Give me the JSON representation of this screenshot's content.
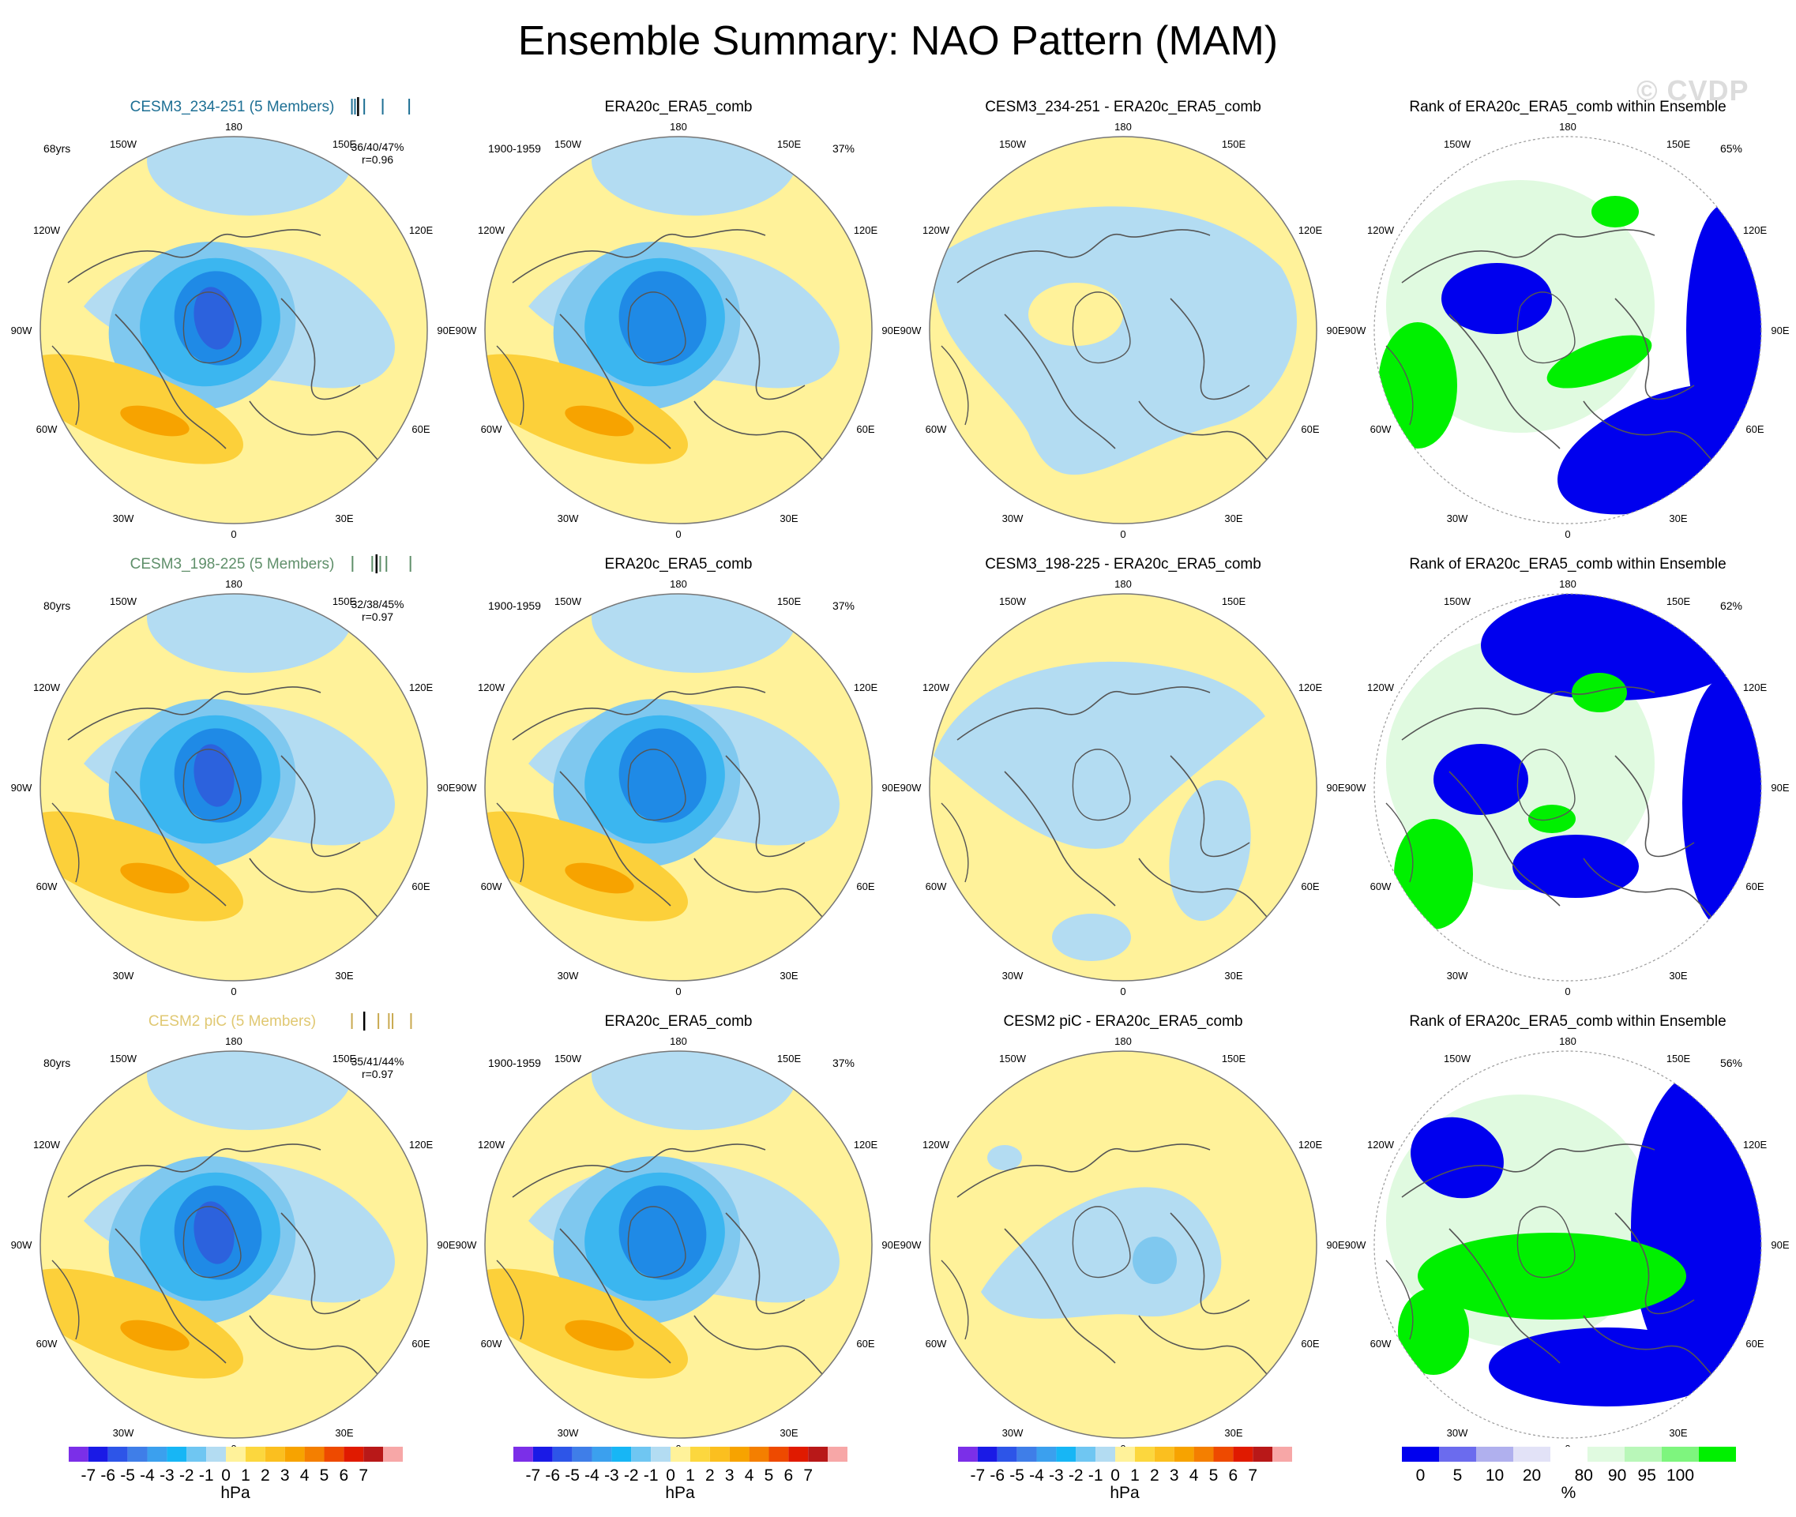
{
  "title": "Ensemble Summary: NAO Pattern (MAM)",
  "watermark": "© CVDP",
  "map_labels": {
    "top": "180",
    "bottom": "0",
    "left": "90W",
    "right": "90E",
    "ul1": "150W",
    "ur1": "150E",
    "ul2": "120W",
    "ur2": "120E",
    "ll1": "60W",
    "lr1": "60E",
    "ll2": "30W",
    "lr2": "30E"
  },
  "colors": {
    "pos1": "#fff29a",
    "pos2": "#fcd03a",
    "pos3": "#f7a300",
    "neg1": "#b3dcf2",
    "neg2": "#7fc8ef",
    "neg3": "#3bb6f0",
    "neg4": "#1f8ae6",
    "neg5": "#2c62dd",
    "rank_blue": "#0000ee",
    "rank_green": "#00f000",
    "rank_pale": "#e0fae0",
    "coast": "#555555"
  },
  "chart_data": [
    {
      "type": "heatmap",
      "projection": "north-polar-stereographic",
      "units": "hPa",
      "rows": [
        {
          "model": "CESM3_234-251 (5 Members)",
          "model_color": "#1d6f94",
          "years": "68yrs",
          "pct_stats": "36/40/47%",
          "r": "r=0.96",
          "ens_bar_color": "#1d6f94",
          "ens_ticks": [
            0.02,
            0.07,
            0.22,
            0.52,
            0.95
          ],
          "ens_obs_tick": 0.12,
          "obs_title": "ERA20c_ERA5_comb",
          "obs_years": "1900-1959",
          "obs_pct": "37%",
          "diff_title": "CESM3_234-251 - ERA20c_ERA5_comb",
          "rank_title": "Rank of ERA20c_ERA5_comb within Ensemble",
          "rank_pct": "65%"
        },
        {
          "model": "CESM3_198-225 (5 Members)",
          "model_color": "#5f8f6a",
          "years": "80yrs",
          "pct_stats": "32/38/45%",
          "r": "r=0.97",
          "ens_bar_color": "#5f8f6a",
          "ens_ticks": [
            0.03,
            0.35,
            0.48,
            0.58,
            0.97
          ],
          "ens_obs_tick": 0.42,
          "obs_title": "ERA20c_ERA5_comb",
          "obs_years": "1900-1959",
          "obs_pct": "37%",
          "diff_title": "CESM3_198-225 - ERA20c_ERA5_comb",
          "rank_title": "Rank of ERA20c_ERA5_comb within Ensemble",
          "rank_pct": "62%"
        },
        {
          "model": "CESM2 piC (5 Members)",
          "model_color": "#e0c872",
          "years": "80yrs",
          "pct_stats": "35/41/44%",
          "r": "r=0.97",
          "ens_bar_color": "#c9a94f",
          "ens_ticks": [
            0.02,
            0.45,
            0.62,
            0.68,
            0.98
          ],
          "ens_obs_tick": 0.22,
          "obs_title": "ERA20c_ERA5_comb",
          "obs_years": "1900-1959",
          "obs_pct": "37%",
          "diff_title": "CESM2 piC - ERA20c_ERA5_comb",
          "rank_title": "Rank of ERA20c_ERA5_comb within Ensemble",
          "rank_pct": "56%"
        }
      ],
      "hpa_colorbar": {
        "unit": "hPa",
        "colors": [
          "#7b2fe8",
          "#1a1ae6",
          "#2d55e8",
          "#3f7ee8",
          "#3ba0ee",
          "#17b6f5",
          "#6fc6f2",
          "#b3dcf2",
          "#fff29a",
          "#fcd73e",
          "#fbbf1f",
          "#f7a300",
          "#f47f00",
          "#ee4a00",
          "#e01a00",
          "#b81818",
          "#f7a7a7"
        ],
        "ticks": [
          "-7",
          "-6",
          "-5",
          "-4",
          "-3",
          "-2",
          "-1",
          "0",
          "1",
          "2",
          "3",
          "4",
          "5",
          "6",
          "7"
        ]
      },
      "rank_colorbar": {
        "unit": "%",
        "colors": [
          "#0000ee",
          "#6b6bee",
          "#b0b0ee",
          "#e2e2f7",
          "#ffffff",
          "#e0fae0",
          "#b9f7b9",
          "#7ef57e",
          "#00f000"
        ],
        "ticks": [
          "0",
          "5",
          "10",
          "20",
          "80",
          "90",
          "95",
          "100"
        ]
      }
    }
  ]
}
